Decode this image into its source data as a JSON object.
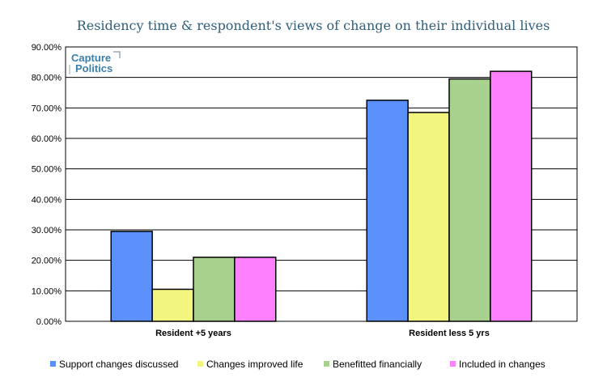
{
  "chart_data": {
    "type": "bar",
    "title": "Residency time & respondent's views of change on their individual lives",
    "categories": [
      "Resident +5 years",
      "Resident less 5 yrs"
    ],
    "series": [
      {
        "name": "Support changes discussed",
        "color": "#5b8ff9",
        "values": [
          29.5,
          72.5
        ]
      },
      {
        "name": "Changes improved life",
        "color": "#f2f57e",
        "values": [
          10.5,
          68.5
        ]
      },
      {
        "name": "Benefitted financially",
        "color": "#a9d18e",
        "values": [
          21.0,
          79.5
        ]
      },
      {
        "name": "Included in changes",
        "color": "#ff80ff",
        "values": [
          21.0,
          82.0
        ]
      }
    ],
    "ylim": [
      0,
      90
    ],
    "yticks": [
      "0.00%",
      "10.00%",
      "20.00%",
      "30.00%",
      "40.00%",
      "50.00%",
      "60.00%",
      "70.00%",
      "80.00%",
      "90.00%"
    ],
    "grid": true,
    "legend": "bottom"
  },
  "logo": {
    "line1": "Capture",
    "line2": "Politics"
  }
}
